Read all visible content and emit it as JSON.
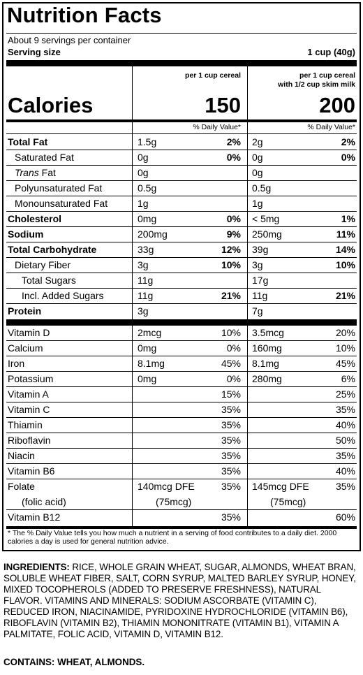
{
  "label": {
    "title": "Nutrition Facts",
    "servings_per_container": "About 9 servings per container",
    "serving_size_label": "Serving size",
    "serving_size_value": "1 cup (40g)",
    "col1_header": [
      "per 1 cup cereal"
    ],
    "col2_header": [
      "per 1 cup cereal",
      "with 1/2 cup skim milk"
    ],
    "calories_label": "Calories",
    "calories": [
      "150",
      "200"
    ],
    "dv_header": "% Daily Value*",
    "nutrients": [
      {
        "name": "Total Fat",
        "amt1": "1.5g",
        "pct1": "2%",
        "amt2": "2g",
        "pct2": "2%"
      },
      {
        "name": "Saturated Fat",
        "amt1": "0g",
        "pct1": "0%",
        "amt2": "0g",
        "pct2": "0%"
      },
      {
        "name_italic": "Trans",
        "name": " Fat",
        "amt1": "0g",
        "pct1": "",
        "amt2": "0g",
        "pct2": ""
      },
      {
        "name": "Polyunsaturated Fat",
        "amt1": "0.5g",
        "pct1": "",
        "amt2": "0.5g",
        "pct2": ""
      },
      {
        "name": "Monounsaturated Fat",
        "amt1": "1g",
        "pct1": "",
        "amt2": "1g",
        "pct2": ""
      },
      {
        "name": "Cholesterol",
        "amt1": "0mg",
        "pct1": "0%",
        "amt2": "< 5mg",
        "pct2": "1%"
      },
      {
        "name": "Sodium",
        "amt1": "200mg",
        "pct1": "9%",
        "amt2": "250mg",
        "pct2": "11%"
      },
      {
        "name": "Total Carbohydrate",
        "amt1": "33g",
        "pct1": "12%",
        "amt2": "39g",
        "pct2": "14%"
      },
      {
        "name": "Dietary Fiber",
        "amt1": "3g",
        "pct1": "10%",
        "amt2": "3g",
        "pct2": "10%"
      },
      {
        "name": "Total Sugars",
        "amt1": "11g",
        "pct1": "",
        "amt2": "17g",
        "pct2": ""
      },
      {
        "name": "Incl. Added Sugars",
        "amt1": "11g",
        "pct1": "21%",
        "amt2": "11g",
        "pct2": "21%"
      },
      {
        "name": "Protein",
        "amt1": "3g",
        "pct1": "",
        "amt2": "7g",
        "pct2": ""
      }
    ],
    "vitamins": [
      {
        "name": "Vitamin D",
        "amt1": "2mcg",
        "pct1": "10%",
        "amt2": "3.5mcg",
        "pct2": "20%"
      },
      {
        "name": "Calcium",
        "amt1": "0mg",
        "pct1": "0%",
        "amt2": "160mg",
        "pct2": "10%"
      },
      {
        "name": "Iron",
        "amt1": "8.1mg",
        "pct1": "45%",
        "amt2": "8.1mg",
        "pct2": "45%"
      },
      {
        "name": "Potassium",
        "amt1": "0mg",
        "pct1": "0%",
        "amt2": "280mg",
        "pct2": "6%"
      },
      {
        "name": "Vitamin A",
        "amt1": "",
        "pct1": "15%",
        "amt2": "",
        "pct2": "25%"
      },
      {
        "name": "Vitamin C",
        "amt1": "",
        "pct1": "35%",
        "amt2": "",
        "pct2": "35%"
      },
      {
        "name": "Thiamin",
        "amt1": "",
        "pct1": "35%",
        "amt2": "",
        "pct2": "40%"
      },
      {
        "name": "Riboflavin",
        "amt1": "",
        "pct1": "35%",
        "amt2": "",
        "pct2": "50%"
      },
      {
        "name": "Niacin",
        "amt1": "",
        "pct1": "35%",
        "amt2": "",
        "pct2": "35%"
      },
      {
        "name": "Vitamin B6",
        "amt1": "",
        "pct1": "35%",
        "amt2": "",
        "pct2": "40%"
      }
    ],
    "folate": {
      "name": "Folate",
      "sub": "(folic acid)",
      "amt1": "140mcg DFE",
      "sub1": "(75mcg)",
      "pct1": "35%",
      "amt2": "145mcg DFE",
      "sub2": "(75mcg)",
      "pct2": "35%"
    },
    "b12": {
      "name": "Vitamin B12",
      "amt1": "",
      "pct1": "35%",
      "amt2": "",
      "pct2": "60%"
    },
    "footnote": "* The % Daily Value tells you how much a nutrient in a serving of food contributes to a daily diet. 2000 calories a day is used for general nutrition advice."
  },
  "ingredients": {
    "label": "INGREDIENTS:",
    "text": " RICE, WHOLE GRAIN WHEAT, SUGAR, ALMONDS, WHEAT BRAN, SOLUBLE WHEAT FIBER, SALT, CORN SYRUP, MALTED BARLEY SYRUP, HONEY, MIXED TOCOPHEROLS (ADDED TO PRESERVE FRESHNESS), NATURAL FLAVOR. VITAMINS AND MINERALS: SODIUM ASCORBATE (VITAMIN C), REDUCED IRON, NIACINAMIDE, PYRIDOXINE HYDROCHLORIDE (VITAMIN B6), RIBOFLAVIN (VITAMIN B2), THIAMIN MONONITRATE (VITAMIN B1), VITAMIN A PALMITATE, FOLIC ACID, VITAMIN D, VITAMIN B12.",
    "contains": "CONTAINS: WHEAT, ALMONDS."
  }
}
